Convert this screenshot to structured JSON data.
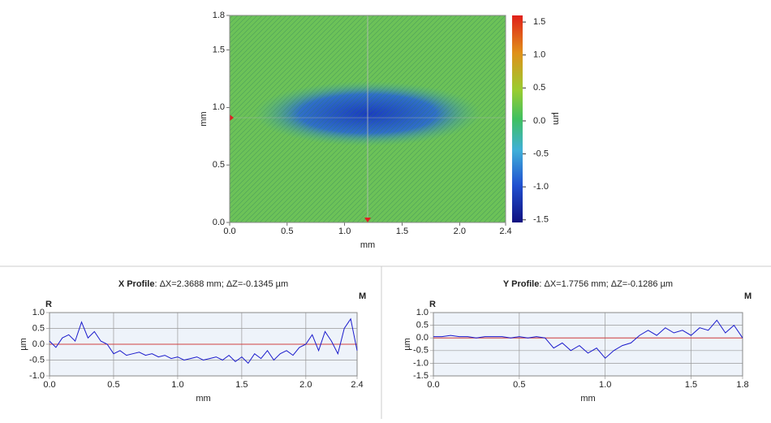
{
  "chart_data": [
    {
      "type": "heatmap",
      "xlabel": "mm",
      "ylabel": "mm",
      "xlim": [
        0,
        2.4
      ],
      "ylim": [
        0,
        1.8
      ],
      "xticks": [
        {
          "value": 0,
          "label": "0.0"
        },
        0.5,
        {
          "value": 1,
          "label": "1.0"
        },
        1.5,
        {
          "value": 2,
          "label": "2.0"
        },
        2.4
      ],
      "yticks": [
        {
          "value": 0,
          "label": "0.0"
        },
        0.5,
        {
          "value": 1,
          "label": "1.0"
        },
        1.5,
        1.8
      ],
      "colorbar": {
        "label": "µm",
        "clim": [
          -1.54,
          1.6
        ],
        "ticks": [
          1.5,
          {
            "value": 1,
            "label": "1.0"
          },
          0.5,
          {
            "value": 0,
            "label": "0.0"
          },
          -0.5,
          {
            "value": -1,
            "label": "-1.0"
          },
          -1.5
        ]
      }
    },
    {
      "type": "line",
      "title": "X Profile",
      "subtitle": ": ΔX=2.3688 mm; ΔZ=-0.1345 µm",
      "xlabel": "mm",
      "ylabel": "µm",
      "left_marker": "R",
      "right_marker": "M",
      "reference": 0,
      "xlim": [
        0,
        2.4
      ],
      "ylim": [
        -1,
        1
      ],
      "xticks": [
        {
          "value": 0,
          "label": "0.0"
        },
        0.5,
        {
          "value": 1,
          "label": "1.0"
        },
        1.5,
        {
          "value": 2,
          "label": "2.0"
        },
        2.4
      ],
      "yticks": [
        {
          "value": -1,
          "label": "-1.0"
        },
        -0.5,
        {
          "value": 0,
          "label": "0.0"
        },
        0.5,
        {
          "value": 1,
          "label": "1.0"
        }
      ],
      "grid": true,
      "color": "#1a1acc",
      "x": [
        0,
        0.05,
        0.1,
        0.15,
        0.2,
        0.25,
        0.3,
        0.35,
        0.4,
        0.45,
        0.5,
        0.55,
        0.6,
        0.65,
        0.7,
        0.75,
        0.8,
        0.85,
        0.9,
        0.95,
        1,
        1.05,
        1.1,
        1.15,
        1.2,
        1.25,
        1.3,
        1.35,
        1.4,
        1.45,
        1.5,
        1.55,
        1.6,
        1.65,
        1.7,
        1.75,
        1.8,
        1.85,
        1.9,
        1.95,
        2,
        2.05,
        2.1,
        2.15,
        2.2,
        2.25,
        2.3,
        2.35,
        2.4
      ],
      "values": [
        0.1,
        -0.1,
        0.2,
        0.3,
        0.1,
        0.7,
        0.2,
        0.4,
        0.1,
        0,
        -0.3,
        -0.2,
        -0.35,
        -0.3,
        -0.25,
        -0.35,
        -0.3,
        -0.4,
        -0.35,
        -0.45,
        -0.4,
        -0.5,
        -0.45,
        -0.4,
        -0.5,
        -0.45,
        -0.4,
        -0.5,
        -0.35,
        -0.55,
        -0.4,
        -0.6,
        -0.3,
        -0.45,
        -0.2,
        -0.5,
        -0.3,
        -0.2,
        -0.35,
        -0.1,
        0,
        0.3,
        -0.2,
        0.4,
        0.1,
        -0.3,
        0.5,
        0.8,
        -0.2
      ]
    },
    {
      "type": "line",
      "title": "Y Profile",
      "subtitle": ": ΔX=1.7756 mm; ΔZ=-0.1286 µm",
      "xlabel": "mm",
      "ylabel": "µm",
      "left_marker": "R",
      "right_marker": "M",
      "reference": 0,
      "xlim": [
        0,
        1.8
      ],
      "ylim": [
        -1.5,
        1
      ],
      "xticks": [
        {
          "value": 0,
          "label": "0.0"
        },
        0.5,
        {
          "value": 1,
          "label": "1.0"
        },
        1.5,
        1.8
      ],
      "yticks": [
        -1.5,
        {
          "value": -1,
          "label": "-1.0"
        },
        -0.5,
        {
          "value": 0,
          "label": "0.0"
        },
        0.5,
        {
          "value": 1,
          "label": "1.0"
        }
      ],
      "grid": true,
      "color": "#1a1acc",
      "x": [
        0,
        0.05,
        0.1,
        0.15,
        0.2,
        0.25,
        0.3,
        0.35,
        0.4,
        0.45,
        0.5,
        0.55,
        0.6,
        0.65,
        0.7,
        0.75,
        0.8,
        0.85,
        0.9,
        0.95,
        1,
        1.05,
        1.1,
        1.15,
        1.2,
        1.25,
        1.3,
        1.35,
        1.4,
        1.45,
        1.5,
        1.55,
        1.6,
        1.65,
        1.7,
        1.75,
        1.8
      ],
      "values": [
        0.05,
        0.05,
        0.1,
        0.05,
        0.05,
        0,
        0.05,
        0.05,
        0.05,
        0,
        0.05,
        0,
        0.05,
        0,
        -0.4,
        -0.2,
        -0.5,
        -0.3,
        -0.6,
        -0.4,
        -0.8,
        -0.5,
        -0.3,
        -0.2,
        0.1,
        0.3,
        0.1,
        0.4,
        0.2,
        0.3,
        0.1,
        0.4,
        0.3,
        0.7,
        0.2,
        0.5,
        0
      ]
    }
  ]
}
